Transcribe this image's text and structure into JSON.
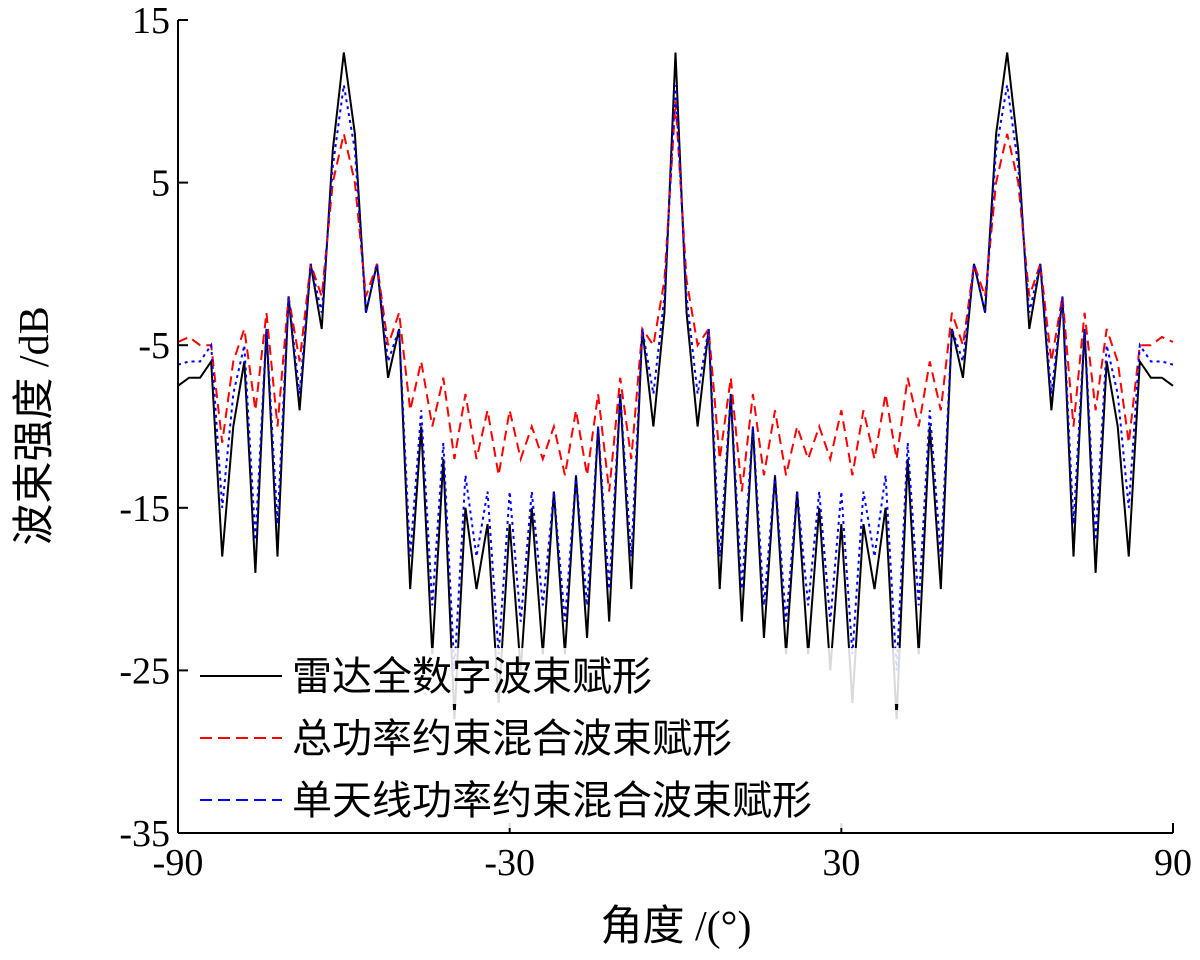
{
  "chart_data": {
    "type": "line",
    "xlabel": "角度 /(°)",
    "ylabel": "波束强度 /dB",
    "xlim": [
      -90,
      90
    ],
    "ylim": [
      -35,
      15
    ],
    "xticks": [
      -90,
      -30,
      30,
      90
    ],
    "yticks": [
      15,
      5,
      -5,
      -15,
      -25,
      -35
    ],
    "legend": "lower left",
    "x": [
      -90,
      -88,
      -86,
      -84,
      -82,
      -80,
      -78,
      -76,
      -74,
      -72,
      -70,
      -68,
      -66,
      -64,
      -62,
      -60,
      -58,
      -56,
      -54,
      -52,
      -50,
      -48,
      -46,
      -44,
      -42,
      -40,
      -38,
      -36,
      -34,
      -32,
      -30,
      -28,
      -26,
      -24,
      -22,
      -20,
      -18,
      -16,
      -14,
      -12,
      -10,
      -8,
      -6,
      -4,
      -2,
      0,
      2,
      4,
      6,
      8,
      10,
      12,
      14,
      16,
      18,
      20,
      22,
      24,
      26,
      28,
      30,
      32,
      34,
      36,
      38,
      40,
      42,
      44,
      46,
      48,
      50,
      52,
      54,
      56,
      58,
      60,
      62,
      64,
      66,
      68,
      70,
      72,
      74,
      76,
      78,
      80,
      82,
      84,
      86,
      88,
      90
    ],
    "series": [
      {
        "name": "雷达全数字波束赋形",
        "color": "#000000",
        "dash": "solid",
        "values": [
          -7.5,
          -7,
          -7,
          -6,
          -18,
          -10,
          -6,
          -19,
          -4,
          -18,
          -2,
          -9,
          0,
          -4,
          7,
          13,
          8,
          -3,
          0,
          -7,
          -4,
          -20,
          -10,
          -24,
          -12,
          -28,
          -15,
          -20,
          -16,
          -27,
          -16,
          -25,
          -15,
          -24,
          -14,
          -24,
          -13,
          -23,
          -10,
          -22,
          -8,
          -20,
          -4,
          -10,
          -3,
          13,
          -3,
          -10,
          -4,
          -20,
          -8,
          -22,
          -10,
          -23,
          -13,
          -24,
          -14,
          -24,
          -15,
          -25,
          -16,
          -27,
          -16,
          -20,
          -15,
          -28,
          -12,
          -24,
          -10,
          -20,
          -4,
          -7,
          0,
          -3,
          8,
          13,
          7,
          -4,
          0,
          -9,
          -2,
          -18,
          -4,
          -19,
          -6,
          -10,
          -18,
          -6,
          -7,
          -7,
          -7.5
        ]
      },
      {
        "name": "总功率约束混合波束赋形",
        "color": "#ff0000",
        "dash": "dashed",
        "values": [
          -4.8,
          -4.5,
          -5,
          -5,
          -11,
          -6,
          -4,
          -9,
          -3,
          -10,
          -2,
          -6,
          0,
          -2,
          5,
          8,
          5,
          -2,
          0,
          -5,
          -3,
          -9,
          -6,
          -10,
          -7,
          -12,
          -8,
          -12,
          -9,
          -13,
          -9,
          -12,
          -10,
          -12,
          -10,
          -13,
          -9,
          -13,
          -8,
          -14,
          -7,
          -12,
          -4,
          -5,
          -1,
          10,
          -1,
          -5,
          -4,
          -12,
          -7,
          -14,
          -8,
          -13,
          -9,
          -13,
          -10,
          -12,
          -10,
          -12,
          -9,
          -13,
          -9,
          -12,
          -8,
          -12,
          -7,
          -10,
          -6,
          -9,
          -3,
          -5,
          0,
          -2,
          5,
          8,
          5,
          -2,
          0,
          -6,
          -2,
          -10,
          -3,
          -9,
          -4,
          -6,
          -11,
          -5,
          -5,
          -4.5,
          -4.8
        ]
      },
      {
        "name": "单天线功率约束混合波束赋形",
        "color": "#0000ff",
        "dash": "dotted",
        "values": [
          -6.2,
          -6,
          -6,
          -5,
          -15,
          -8,
          -5,
          -17,
          -4,
          -16,
          -2,
          -8,
          0,
          -3,
          6,
          11,
          7,
          -3,
          0,
          -6,
          -4,
          -18,
          -9,
          -21,
          -11,
          -25,
          -13,
          -18,
          -14,
          -24,
          -14,
          -22,
          -14,
          -21,
          -14,
          -22,
          -13,
          -21,
          -10,
          -20,
          -8,
          -18,
          -4,
          -8,
          -2,
          11,
          -2,
          -8,
          -4,
          -18,
          -8,
          -20,
          -10,
          -21,
          -13,
          -22,
          -14,
          -21,
          -14,
          -22,
          -14,
          -24,
          -14,
          -18,
          -13,
          -25,
          -11,
          -21,
          -9,
          -18,
          -4,
          -6,
          0,
          -3,
          7,
          11,
          6,
          -3,
          0,
          -8,
          -2,
          -16,
          -4,
          -17,
          -5,
          -8,
          -15,
          -5,
          -6,
          -6,
          -6.2
        ]
      }
    ]
  }
}
